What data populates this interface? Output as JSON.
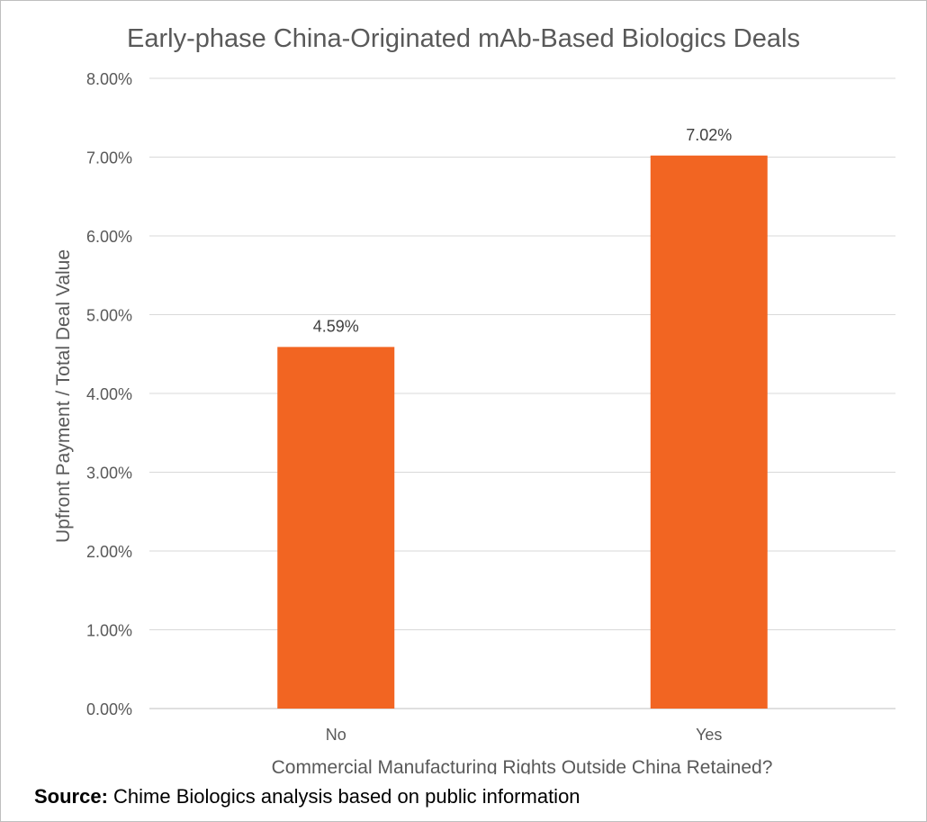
{
  "chart_data": {
    "type": "bar",
    "title": "Early-phase China-Originated mAb-Based Biologics Deals",
    "xlabel": "Commercial Manufacturing Rights Outside China Retained?",
    "ylabel": "Upfront Payment / Total Deal Value",
    "categories": [
      "No",
      "Yes"
    ],
    "values": [
      4.59,
      7.02
    ],
    "data_labels": [
      "4.59%",
      "7.02%"
    ],
    "ylim": [
      0,
      8
    ],
    "yticks": [
      "0.00%",
      "1.00%",
      "2.00%",
      "3.00%",
      "4.00%",
      "5.00%",
      "6.00%",
      "7.00%",
      "8.00%"
    ],
    "grid": true,
    "bar_color": "#F26522"
  },
  "source": {
    "label": "Source:",
    "text": "Chime Biologics analysis based on public information"
  }
}
